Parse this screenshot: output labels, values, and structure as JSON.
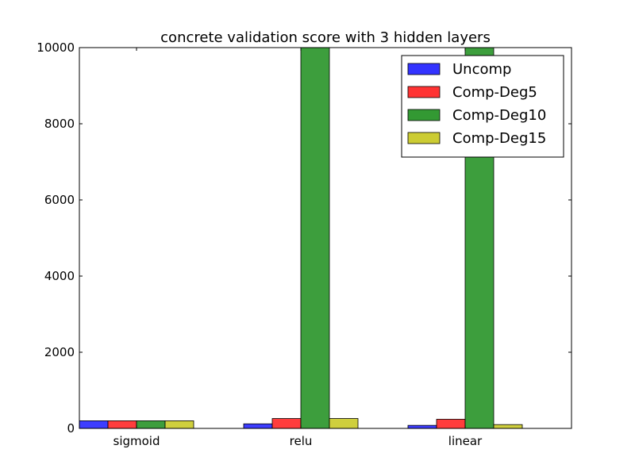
{
  "chart_data": {
    "type": "bar",
    "title": "concrete validation score with 3 hidden layers",
    "xlabel": "",
    "ylabel": "",
    "categories": [
      "sigmoid",
      "relu",
      "linear"
    ],
    "ylim": [
      0,
      10000
    ],
    "yticks": [
      0,
      2000,
      4000,
      6000,
      8000,
      10000
    ],
    "grid": false,
    "legend_position": "top-right",
    "series": [
      {
        "name": "Uncomp",
        "color": "#3333ff",
        "values": [
          200,
          120,
          80
        ]
      },
      {
        "name": "Comp-Deg5",
        "color": "#ff3333",
        "values": [
          200,
          260,
          240
        ]
      },
      {
        "name": "Comp-Deg10",
        "color": "#339933",
        "values": [
          200,
          10000,
          10000
        ]
      },
      {
        "name": "Comp-Deg15",
        "color": "#cccc33",
        "values": [
          200,
          260,
          100
        ]
      }
    ]
  }
}
